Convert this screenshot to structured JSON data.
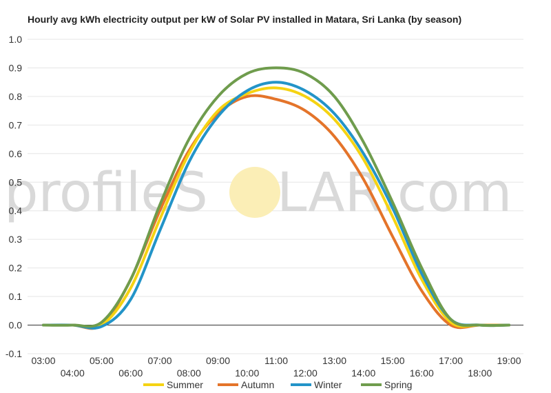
{
  "chart_data": {
    "type": "line",
    "title": "Hourly avg kWh electricity output per kW of Solar PV installed in Matara, Sri Lanka (by season)",
    "xlabel": "",
    "ylabel": "",
    "x": [
      "03:00",
      "04:00",
      "05:00",
      "06:00",
      "07:00",
      "08:00",
      "09:00",
      "10:00",
      "11:00",
      "12:00",
      "13:00",
      "14:00",
      "15:00",
      "16:00",
      "17:00",
      "18:00",
      "19:00"
    ],
    "ylim": [
      -0.1,
      1.0
    ],
    "yticks": [
      "1.0",
      "0.9",
      "0.8",
      "0.7",
      "0.6",
      "0.5",
      "0.4",
      "0.3",
      "0.2",
      "0.1",
      "0.0",
      "-0.1"
    ],
    "grid": true,
    "legend_position": "bottom",
    "series": [
      {
        "name": "Summer",
        "color": "#f5d313",
        "values": [
          0,
          0,
          0,
          0.13,
          0.37,
          0.6,
          0.75,
          0.81,
          0.83,
          0.8,
          0.72,
          0.58,
          0.38,
          0.16,
          0.01,
          0,
          0
        ]
      },
      {
        "name": "Autumn",
        "color": "#e4742a",
        "values": [
          0,
          0,
          0,
          0.16,
          0.4,
          0.61,
          0.74,
          0.8,
          0.79,
          0.75,
          0.66,
          0.51,
          0.31,
          0.12,
          0,
          0,
          0
        ]
      },
      {
        "name": "Winter",
        "color": "#2394c8",
        "values": [
          0,
          0,
          -0.005,
          0.09,
          0.33,
          0.57,
          0.73,
          0.82,
          0.85,
          0.82,
          0.74,
          0.6,
          0.41,
          0.18,
          0.02,
          0,
          0
        ]
      },
      {
        "name": "Spring",
        "color": "#6f9c4d",
        "values": [
          0,
          0,
          0.01,
          0.16,
          0.42,
          0.65,
          0.8,
          0.88,
          0.9,
          0.88,
          0.8,
          0.64,
          0.43,
          0.2,
          0.02,
          0,
          0
        ]
      }
    ]
  },
  "watermark": {
    "left": "profileS",
    "right": "LAR.com",
    "sun_color": "#fbeeb6"
  }
}
